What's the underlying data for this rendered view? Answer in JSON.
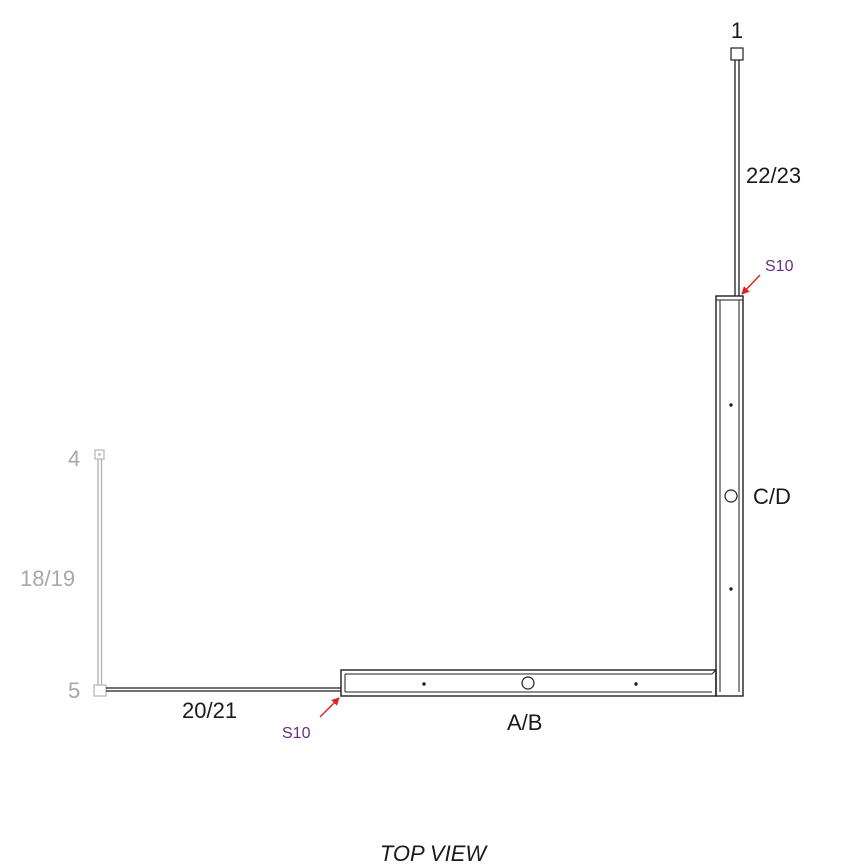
{
  "colors": {
    "line": "#1e1e1e",
    "faded": "#a8a8a8",
    "part_label": "#6a2a8a",
    "arrow": "#e02020"
  },
  "labels": {
    "post_1": "1",
    "post_4": "4",
    "post_5": "5",
    "panel_22_23": "22/23",
    "panel_18_19": "18/19",
    "panel_20_21": "20/21",
    "base_cd": "C/D",
    "base_ab": "A/B",
    "part_s10_top": "S10",
    "part_s10_bottom": "S10",
    "view_title": "TOP VIEW"
  }
}
